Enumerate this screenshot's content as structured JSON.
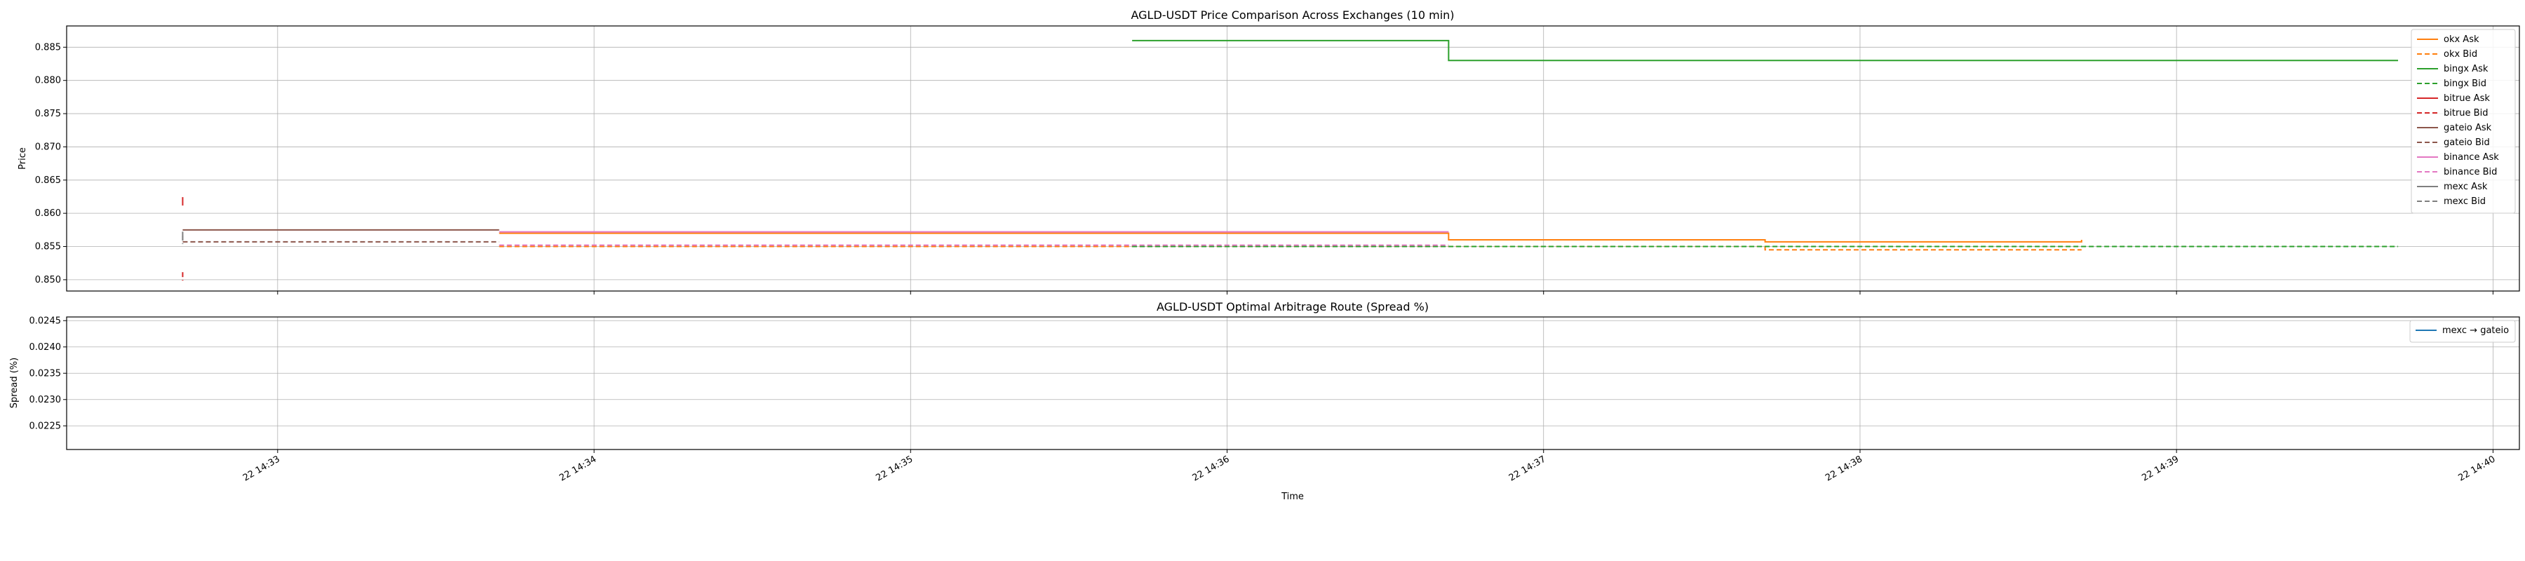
{
  "chart_data": [
    {
      "type": "line",
      "title": "AGLD-USDT Price Comparison Across Exchanges (10 min)",
      "xlabel": "",
      "ylabel": "Price",
      "xlim": [
        "14:32:20",
        "14:40:05"
      ],
      "ylim": [
        0.8483,
        0.8882
      ],
      "yticks": [
        "0.850",
        "0.855",
        "0.860",
        "0.865",
        "0.870",
        "0.875",
        "0.880",
        "0.885"
      ],
      "grid": true,
      "legend_position": "top-right",
      "series": [
        {
          "name": "okx Ask",
          "color": "#ff7f0e",
          "dash": "solid",
          "x": [
            "14:33:42",
            "14:36:42",
            "14:37:42",
            "14:38:42"
          ],
          "y": [
            0.857,
            0.856,
            0.8557,
            0.856
          ]
        },
        {
          "name": "okx Bid",
          "color": "#ff7f0e",
          "dash": "dashed",
          "x": [
            "14:33:42",
            "14:36:42",
            "14:37:42",
            "14:38:42"
          ],
          "y": [
            0.855,
            0.855,
            0.8545,
            0.8545
          ]
        },
        {
          "name": "bingx Ask",
          "color": "#2ca02c",
          "dash": "solid",
          "x": [
            "14:35:42",
            "14:36:42",
            "14:39:42"
          ],
          "y": [
            0.886,
            0.883,
            0.883
          ]
        },
        {
          "name": "bingx Bid",
          "color": "#2ca02c",
          "dash": "dashed",
          "x": [
            "14:35:42",
            "14:36:42",
            "14:39:42"
          ],
          "y": [
            0.855,
            0.855,
            0.855
          ]
        },
        {
          "name": "bitrue Ask",
          "color": "#d62728",
          "dash": "solid",
          "x": [
            "14:32:42"
          ],
          "y": [
            0.8618
          ]
        },
        {
          "name": "bitrue Bid",
          "color": "#d62728",
          "dash": "dashed",
          "x": [
            "14:32:42"
          ],
          "y": [
            0.8505
          ]
        },
        {
          "name": "gateio Ask",
          "color": "#8c564b",
          "dash": "solid",
          "x": [
            "14:32:42",
            "14:33:42"
          ],
          "y": [
            0.8575,
            0.8575
          ]
        },
        {
          "name": "gateio Bid",
          "color": "#8c564b",
          "dash": "dashed",
          "x": [
            "14:32:42",
            "14:33:42"
          ],
          "y": [
            0.8557,
            0.8557
          ]
        },
        {
          "name": "binance Ask",
          "color": "#e377c2",
          "dash": "solid",
          "x": [
            "14:33:42",
            "14:36:42"
          ],
          "y": [
            0.8572,
            0.8572
          ]
        },
        {
          "name": "binance Bid",
          "color": "#e377c2",
          "dash": "dashed",
          "x": [
            "14:33:42",
            "14:36:42"
          ],
          "y": [
            0.8552,
            0.8552
          ]
        },
        {
          "name": "mexc Ask",
          "color": "#7f7f7f",
          "dash": "solid",
          "x": [
            "14:32:42"
          ],
          "y": [
            0.8566
          ]
        },
        {
          "name": "mexc Bid",
          "color": "#7f7f7f",
          "dash": "dashed",
          "x": [
            "14:32:42"
          ],
          "y": [
            0.856
          ]
        }
      ]
    },
    {
      "type": "line",
      "title": "AGLD-USDT Optimal Arbitrage Route (Spread %)",
      "xlabel": "Time",
      "ylabel": "Spread (%)",
      "xlim": [
        "14:32:20",
        "14:40:05"
      ],
      "ylim": [
        0.02205,
        0.02457
      ],
      "yticks": [
        "0.0225",
        "0.0230",
        "0.0235",
        "0.0240",
        "0.0245"
      ],
      "xticks": [
        "22 14:33",
        "22 14:34",
        "22 14:35",
        "22 14:36",
        "22 14:37",
        "22 14:38",
        "22 14:39",
        "22 14:40"
      ],
      "grid": true,
      "legend_position": "top-right",
      "series": [
        {
          "name": "mexc → gateio",
          "color": "#1f77b4",
          "dash": "solid",
          "x": [],
          "y": []
        }
      ]
    }
  ]
}
